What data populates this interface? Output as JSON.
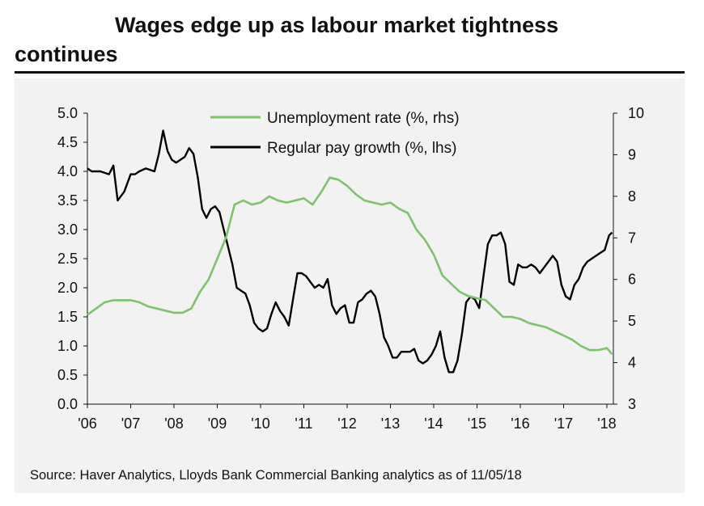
{
  "title_line1": "Wages edge up as labour market tightness",
  "title_line2": "continues",
  "source": "Source: Haver Analytics, Lloyds Bank Commercial Banking analytics as of 11/05/18",
  "colors": {
    "wages": "#000000",
    "unemployment": "#7fc26e",
    "rule": "#111111",
    "panel": "#f2f2f2"
  },
  "chart_data": {
    "type": "line",
    "title": "Wages edge up as labour market tightness continues",
    "x_tick_labels": [
      "'06",
      "'07",
      "'08",
      "'09",
      "'10",
      "'11",
      "'12",
      "'13",
      "'14",
      "'15",
      "'16",
      "'17",
      "'18"
    ],
    "x_range": [
      2006.0,
      2018.15
    ],
    "y_left": {
      "label": "Regular pay growth (%, lhs)",
      "range": [
        0,
        5
      ],
      "ticks": [
        "0.0",
        "0.5",
        "1.0",
        "1.5",
        "2.0",
        "2.5",
        "3.0",
        "3.5",
        "4.0",
        "4.5",
        "5.0"
      ]
    },
    "y_right": {
      "label": "Unemployment rate (%, rhs)",
      "range": [
        3,
        10
      ],
      "ticks": [
        "3",
        "4",
        "5",
        "6",
        "7",
        "8",
        "9",
        "10"
      ]
    },
    "legend": {
      "position": "top-center",
      "entries": [
        "Unemployment rate (%, rhs)",
        "Regular pay growth (%, lhs)"
      ]
    },
    "series": [
      {
        "name": "Regular pay growth (%, lhs)",
        "axis": "left",
        "color": "#000000",
        "x": [
          2006.0,
          2006.1,
          2006.3,
          2006.5,
          2006.6,
          2006.7,
          2006.85,
          2007.0,
          2007.1,
          2007.2,
          2007.35,
          2007.55,
          2007.65,
          2007.75,
          2007.85,
          2007.95,
          2008.05,
          2008.15,
          2008.25,
          2008.35,
          2008.45,
          2008.55,
          2008.65,
          2008.75,
          2008.85,
          2008.95,
          2009.05,
          2009.15,
          2009.25,
          2009.35,
          2009.45,
          2009.55,
          2009.65,
          2009.75,
          2009.85,
          2009.95,
          2010.05,
          2010.15,
          2010.25,
          2010.35,
          2010.45,
          2010.55,
          2010.65,
          2010.75,
          2010.85,
          2010.95,
          2011.05,
          2011.15,
          2011.25,
          2011.35,
          2011.45,
          2011.55,
          2011.65,
          2011.75,
          2011.85,
          2011.95,
          2012.05,
          2012.15,
          2012.25,
          2012.35,
          2012.45,
          2012.55,
          2012.65,
          2012.75,
          2012.85,
          2012.95,
          2013.05,
          2013.15,
          2013.25,
          2013.35,
          2013.45,
          2013.55,
          2013.65,
          2013.75,
          2013.85,
          2013.95,
          2014.05,
          2014.15,
          2014.25,
          2014.35,
          2014.45,
          2014.55,
          2014.65,
          2014.75,
          2014.85,
          2014.95,
          2015.05,
          2015.15,
          2015.25,
          2015.35,
          2015.45,
          2015.55,
          2015.65,
          2015.75,
          2015.85,
          2015.95,
          2016.05,
          2016.15,
          2016.25,
          2016.35,
          2016.45,
          2016.55,
          2016.65,
          2016.75,
          2016.85,
          2016.95,
          2017.05,
          2017.15,
          2017.25,
          2017.35,
          2017.45,
          2017.55,
          2017.65,
          2017.75,
          2017.85,
          2017.95,
          2018.05,
          2018.12
        ],
        "values": [
          4.05,
          4.0,
          4.0,
          3.95,
          4.1,
          3.5,
          3.65,
          3.95,
          3.95,
          4.0,
          4.05,
          4.0,
          4.3,
          4.7,
          4.35,
          4.2,
          4.15,
          4.2,
          4.25,
          4.4,
          4.3,
          3.9,
          3.35,
          3.2,
          3.35,
          3.4,
          3.3,
          3.0,
          2.7,
          2.4,
          2.0,
          1.95,
          1.9,
          1.7,
          1.4,
          1.3,
          1.25,
          1.3,
          1.55,
          1.75,
          1.6,
          1.5,
          1.35,
          1.8,
          2.25,
          2.25,
          2.2,
          2.1,
          2.0,
          2.05,
          2.0,
          2.15,
          1.7,
          1.55,
          1.65,
          1.7,
          1.4,
          1.4,
          1.75,
          1.8,
          1.9,
          1.95,
          1.85,
          1.55,
          1.15,
          1.0,
          0.8,
          0.8,
          0.9,
          0.9,
          0.9,
          0.95,
          0.75,
          0.7,
          0.75,
          0.85,
          1.0,
          1.25,
          0.8,
          0.55,
          0.55,
          0.75,
          1.2,
          1.75,
          1.85,
          1.8,
          1.65,
          2.2,
          2.75,
          2.9,
          2.9,
          2.95,
          2.75,
          2.1,
          2.05,
          2.4,
          2.35,
          2.35,
          2.4,
          2.35,
          2.25,
          2.35,
          2.45,
          2.55,
          2.45,
          2.05,
          1.85,
          1.8,
          2.05,
          2.15,
          2.35,
          2.45,
          2.5,
          2.55,
          2.6,
          2.65,
          2.9,
          2.95
        ]
      },
      {
        "name": "Unemployment rate (%, rhs)",
        "axis": "right",
        "color": "#7fc26e",
        "x": [
          2006.0,
          2006.2,
          2006.4,
          2006.6,
          2006.8,
          2007.0,
          2007.2,
          2007.4,
          2007.6,
          2007.8,
          2008.0,
          2008.2,
          2008.4,
          2008.6,
          2008.8,
          2009.0,
          2009.2,
          2009.4,
          2009.6,
          2009.8,
          2010.0,
          2010.2,
          2010.4,
          2010.6,
          2010.8,
          2011.0,
          2011.2,
          2011.4,
          2011.6,
          2011.8,
          2012.0,
          2012.2,
          2012.4,
          2012.6,
          2012.8,
          2013.0,
          2013.2,
          2013.4,
          2013.6,
          2013.8,
          2014.0,
          2014.2,
          2014.4,
          2014.6,
          2014.8,
          2015.0,
          2015.2,
          2015.4,
          2015.6,
          2015.8,
          2016.0,
          2016.2,
          2016.4,
          2016.6,
          2016.8,
          2017.0,
          2017.2,
          2017.4,
          2017.6,
          2017.8,
          2018.0,
          2018.12
        ],
        "values": [
          5.15,
          5.3,
          5.45,
          5.5,
          5.5,
          5.5,
          5.45,
          5.35,
          5.3,
          5.25,
          5.2,
          5.2,
          5.3,
          5.7,
          6.0,
          6.5,
          7.0,
          7.8,
          7.9,
          7.8,
          7.85,
          8.0,
          7.9,
          7.85,
          7.9,
          7.95,
          7.8,
          8.1,
          8.45,
          8.4,
          8.25,
          8.05,
          7.9,
          7.85,
          7.8,
          7.85,
          7.7,
          7.6,
          7.2,
          6.95,
          6.6,
          6.1,
          5.9,
          5.7,
          5.6,
          5.55,
          5.5,
          5.3,
          5.1,
          5.1,
          5.05,
          4.95,
          4.9,
          4.85,
          4.75,
          4.65,
          4.55,
          4.4,
          4.3,
          4.3,
          4.35,
          4.2
        ]
      }
    ]
  }
}
